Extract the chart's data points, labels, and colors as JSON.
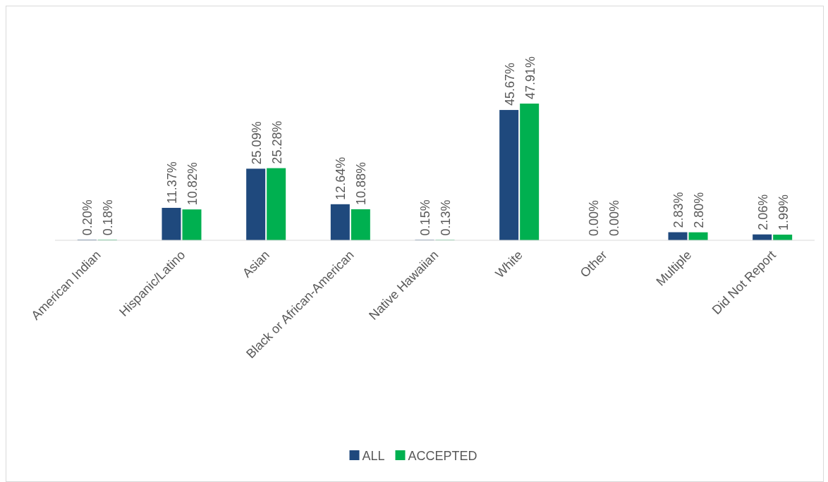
{
  "chart_data": {
    "type": "bar",
    "categories": [
      "American Indian",
      "Hispanic/Latino",
      "Asian",
      "Black or African-American",
      "Native Hawaiian",
      "White",
      "Other",
      "Multiple",
      "Did Not Report"
    ],
    "series": [
      {
        "name": "ALL",
        "color": "#1f497d",
        "values": [
          0.2,
          11.37,
          25.09,
          12.64,
          0.15,
          45.67,
          0,
          2.83,
          2.06
        ],
        "value_labels": [
          "0.20%",
          "11.37%",
          "25.09%",
          "12.64%",
          "0.15%",
          "45.67%",
          "0.00%",
          "2.83%",
          "2.06%"
        ]
      },
      {
        "name": "ACCEPTED",
        "color": "#00b050",
        "values": [
          0.18,
          10.82,
          25.28,
          10.88,
          0.13,
          47.91,
          0,
          2.8,
          1.99
        ],
        "value_labels": [
          "0.18%",
          "10.82%",
          "25.28%",
          "10.88%",
          "0.13%",
          "47.91%",
          "0.00%",
          "2.80%",
          "1.99%"
        ]
      }
    ],
    "legend": "bottom"
  }
}
